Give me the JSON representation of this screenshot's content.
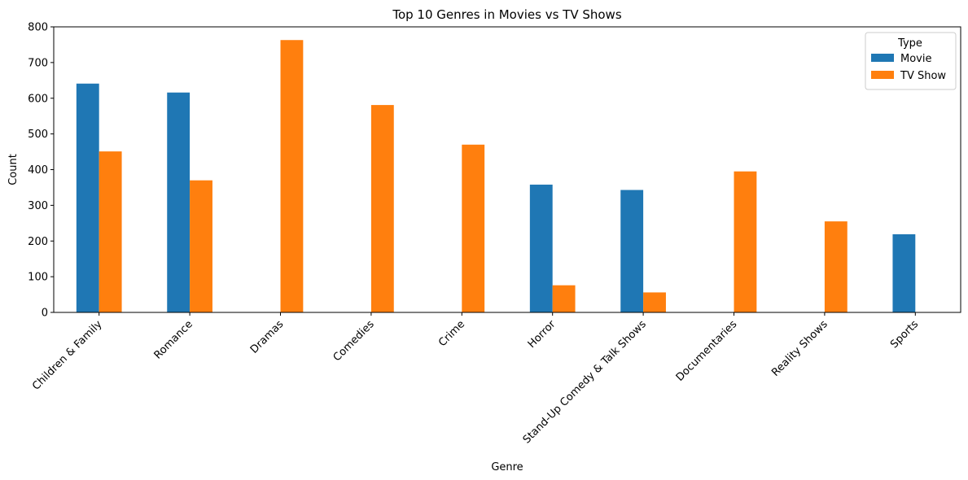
{
  "chart_data": {
    "type": "bar",
    "title": "Top 10 Genres in Movies vs TV Shows",
    "xlabel": "Genre",
    "ylabel": "Count",
    "ylim": [
      0,
      800
    ],
    "yticks": [
      0,
      100,
      200,
      300,
      400,
      500,
      600,
      700,
      800
    ],
    "categories": [
      "Children & Family",
      "Romance",
      "Dramas",
      "Comedies",
      "Crime",
      "Horror",
      "Stand-Up Comedy & Talk Shows",
      "Documentaries",
      "Reality Shows",
      "Sports"
    ],
    "series": [
      {
        "name": "Movie",
        "color": "#1f77b4",
        "values": [
          641,
          616,
          0,
          0,
          0,
          358,
          343,
          0,
          0,
          219
        ]
      },
      {
        "name": "TV Show",
        "color": "#ff7f0e",
        "values": [
          451,
          370,
          763,
          581,
          470,
          76,
          56,
          395,
          255,
          0
        ]
      }
    ],
    "legend": {
      "title": "Type",
      "placement": "top-right"
    },
    "grid": false
  }
}
